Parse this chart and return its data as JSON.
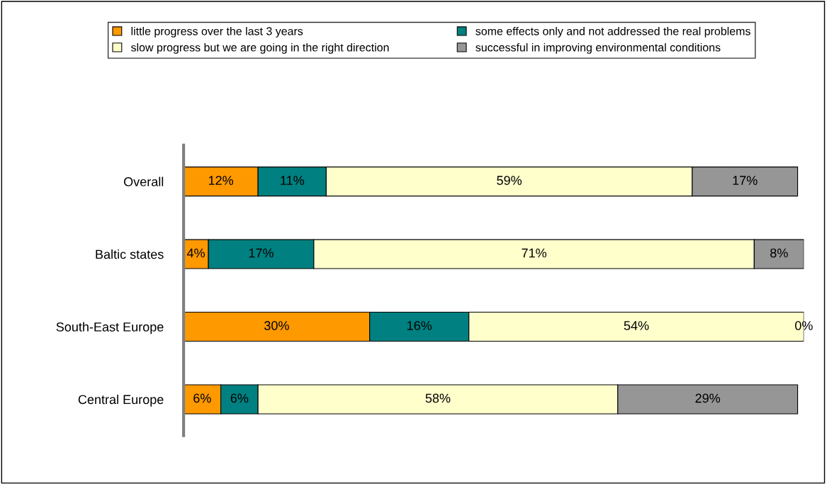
{
  "chart_data": {
    "type": "bar",
    "orientation": "horizontal",
    "stacked": true,
    "grid": false,
    "legend": "top",
    "tick_labels": "y",
    "categories": [
      "Overall",
      "Baltic states",
      "South-East Europe",
      "Central Europe"
    ],
    "series": [
      {
        "name": "little progress over the last 3 years",
        "color": "#ff9900",
        "values": [
          12,
          4,
          30,
          6
        ],
        "value_labels": [
          "12%",
          "4%",
          "30%",
          "6%"
        ]
      },
      {
        "name": "some effects only and not addressed the real problems",
        "color": "#008080",
        "values": [
          11,
          17,
          16,
          6
        ],
        "value_labels": [
          "11%",
          "17%",
          "16%",
          "6%"
        ]
      },
      {
        "name": "slow progress but we are going in the right direction",
        "color": "#ffffcc",
        "values": [
          59,
          71,
          54,
          58
        ],
        "value_labels": [
          "59%",
          "71%",
          "54%",
          "58%"
        ]
      },
      {
        "name": "successful in improving environmental conditions",
        "color": "#969696",
        "values": [
          17,
          8,
          0,
          29
        ],
        "value_labels": [
          "17%",
          "8%",
          "0%",
          "29%"
        ]
      }
    ]
  }
}
